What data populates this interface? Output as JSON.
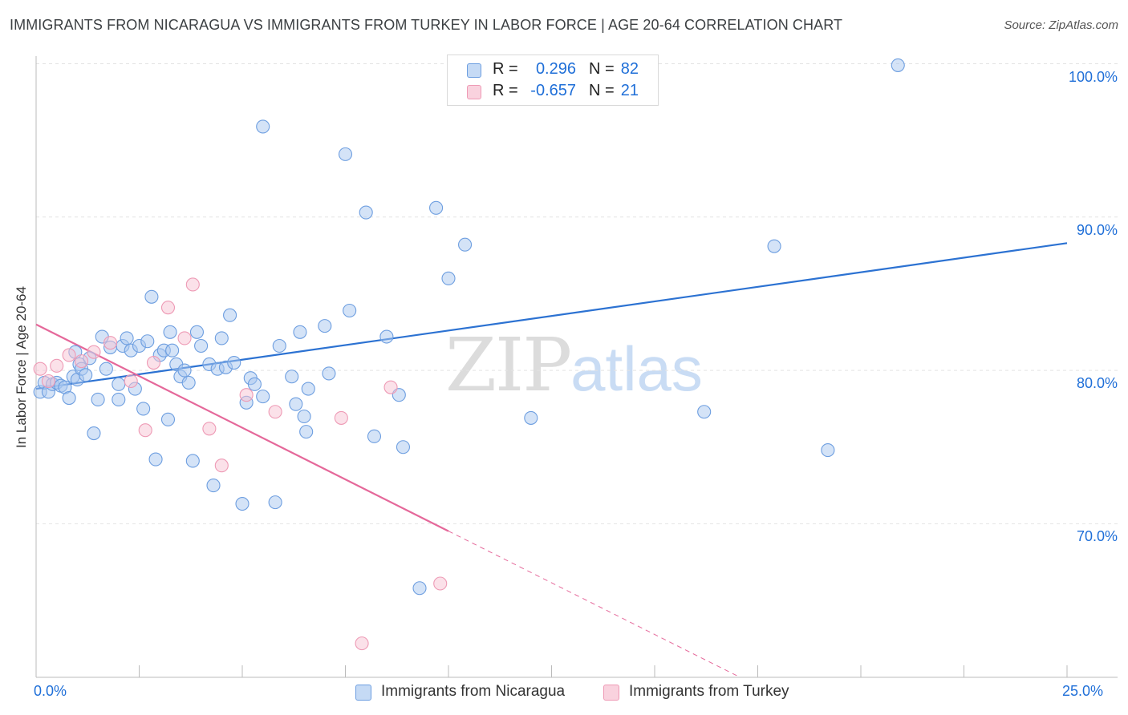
{
  "header": {
    "title": "IMMIGRANTS FROM NICARAGUA VS IMMIGRANTS FROM TURKEY IN LABOR FORCE | AGE 20-64 CORRELATION CHART",
    "source": "Source: ZipAtlas.com"
  },
  "watermark": {
    "zip": "ZIP",
    "atlas": "atlas"
  },
  "legend": {
    "nicaragua": {
      "r_label": "R =",
      "r_value": "0.296",
      "n_label": "N =",
      "n_value": "82"
    },
    "turkey": {
      "r_label": "R =",
      "r_value": "-0.657",
      "n_label": "N =",
      "n_value": "21"
    }
  },
  "colors": {
    "nicaragua_fill": "#aac8ef",
    "nicaragua_stroke": "#6d9ee0",
    "nicaragua_line": "#2c72d2",
    "turkey_fill": "#f7c3d3",
    "turkey_stroke": "#ee9ab5",
    "turkey_line": "#e5689a",
    "axis_label": "#1f6fd8",
    "grid": "#e3e3e3"
  },
  "chart_data": {
    "type": "scatter",
    "title": "IMMIGRANTS FROM NICARAGUA VS IMMIGRANTS FROM TURKEY IN LABOR FORCE | AGE 20-64 CORRELATION CHART",
    "xlabel": "",
    "ylabel": "In Labor Force | Age 20-64",
    "xlim": [
      0,
      25
    ],
    "ylim": [
      61,
      102
    ],
    "x_tick_labels": [
      "0.0%",
      "25.0%"
    ],
    "y_tick_labels": [
      "100.0%",
      "90.0%",
      "80.0%",
      "70.0%"
    ],
    "y_tick_values": [
      100,
      90,
      80,
      70
    ],
    "grid": true,
    "legend_position": "top-center",
    "series": [
      {
        "name": "Immigrants from Nicaragua",
        "R": 0.296,
        "N": 82,
        "points": [
          [
            0.1,
            78.6
          ],
          [
            0.2,
            79.2
          ],
          [
            0.3,
            78.6
          ],
          [
            0.4,
            79.1
          ],
          [
            0.5,
            79.2
          ],
          [
            0.6,
            79.0
          ],
          [
            0.7,
            78.9
          ],
          [
            0.8,
            78.2
          ],
          [
            0.9,
            79.6
          ],
          [
            1.0,
            79.4
          ],
          [
            0.95,
            81.2
          ],
          [
            1.05,
            80.4
          ],
          [
            1.1,
            80.1
          ],
          [
            1.2,
            79.7
          ],
          [
            1.3,
            80.8
          ],
          [
            1.4,
            75.9
          ],
          [
            1.5,
            78.1
          ],
          [
            1.6,
            82.2
          ],
          [
            1.7,
            80.1
          ],
          [
            1.8,
            81.5
          ],
          [
            2.0,
            78.1
          ],
          [
            2.0,
            79.1
          ],
          [
            2.1,
            81.6
          ],
          [
            2.2,
            82.1
          ],
          [
            2.3,
            81.3
          ],
          [
            2.4,
            78.8
          ],
          [
            2.5,
            81.6
          ],
          [
            2.6,
            77.5
          ],
          [
            2.7,
            81.9
          ],
          [
            2.8,
            84.8
          ],
          [
            2.9,
            74.2
          ],
          [
            3.0,
            81.0
          ],
          [
            3.1,
            81.3
          ],
          [
            3.2,
            76.8
          ],
          [
            3.25,
            82.5
          ],
          [
            3.3,
            81.3
          ],
          [
            3.4,
            80.4
          ],
          [
            3.5,
            79.6
          ],
          [
            3.6,
            80.0
          ],
          [
            3.7,
            79.2
          ],
          [
            3.8,
            74.1
          ],
          [
            3.9,
            82.5
          ],
          [
            4.0,
            81.6
          ],
          [
            4.2,
            80.4
          ],
          [
            4.3,
            72.5
          ],
          [
            4.4,
            80.1
          ],
          [
            4.5,
            82.1
          ],
          [
            4.6,
            80.2
          ],
          [
            4.7,
            83.6
          ],
          [
            4.8,
            80.5
          ],
          [
            5.0,
            71.3
          ],
          [
            5.1,
            77.9
          ],
          [
            5.2,
            79.5
          ],
          [
            5.3,
            79.1
          ],
          [
            5.5,
            78.3
          ],
          [
            5.5,
            95.9
          ],
          [
            5.8,
            71.4
          ],
          [
            5.9,
            81.6
          ],
          [
            6.2,
            79.6
          ],
          [
            6.3,
            77.8
          ],
          [
            6.4,
            82.5
          ],
          [
            6.5,
            77.0
          ],
          [
            6.55,
            76.0
          ],
          [
            6.6,
            78.8
          ],
          [
            7.0,
            82.9
          ],
          [
            7.1,
            79.8
          ],
          [
            7.5,
            94.1
          ],
          [
            7.6,
            83.9
          ],
          [
            8.0,
            90.3
          ],
          [
            8.2,
            75.7
          ],
          [
            8.5,
            82.2
          ],
          [
            8.8,
            78.4
          ],
          [
            8.9,
            75.0
          ],
          [
            9.3,
            65.8
          ],
          [
            9.7,
            90.6
          ],
          [
            10.0,
            86.0
          ],
          [
            10.4,
            88.2
          ],
          [
            12.0,
            76.9
          ],
          [
            16.2,
            77.3
          ],
          [
            17.9,
            88.1
          ],
          [
            19.2,
            74.8
          ],
          [
            20.9,
            99.9
          ]
        ],
        "trend": {
          "x1": 0,
          "y1": 78.8,
          "x2": 25,
          "y2": 88.3
        }
      },
      {
        "name": "Immigrants from Turkey",
        "R": -0.657,
        "N": 21,
        "points": [
          [
            0.1,
            80.1
          ],
          [
            0.3,
            79.3
          ],
          [
            0.5,
            80.3
          ],
          [
            0.8,
            81.0
          ],
          [
            1.1,
            80.6
          ],
          [
            1.4,
            81.2
          ],
          [
            1.8,
            81.8
          ],
          [
            2.3,
            79.3
          ],
          [
            2.65,
            76.1
          ],
          [
            2.85,
            80.5
          ],
          [
            3.2,
            84.1
          ],
          [
            3.6,
            82.1
          ],
          [
            3.8,
            85.6
          ],
          [
            4.2,
            76.2
          ],
          [
            4.5,
            73.8
          ],
          [
            5.1,
            78.4
          ],
          [
            5.8,
            77.3
          ],
          [
            7.4,
            76.9
          ],
          [
            7.9,
            62.2
          ],
          [
            8.6,
            78.9
          ],
          [
            9.8,
            66.1
          ]
        ],
        "trend": {
          "x1": 0,
          "y1": 83.0,
          "x2": 25,
          "y2": 49.3,
          "solid_until_x": 10
        }
      }
    ]
  },
  "bottom_legend": {
    "nicaragua_label": "Immigrants from Nicaragua",
    "turkey_label": "Immigrants from Turkey"
  }
}
